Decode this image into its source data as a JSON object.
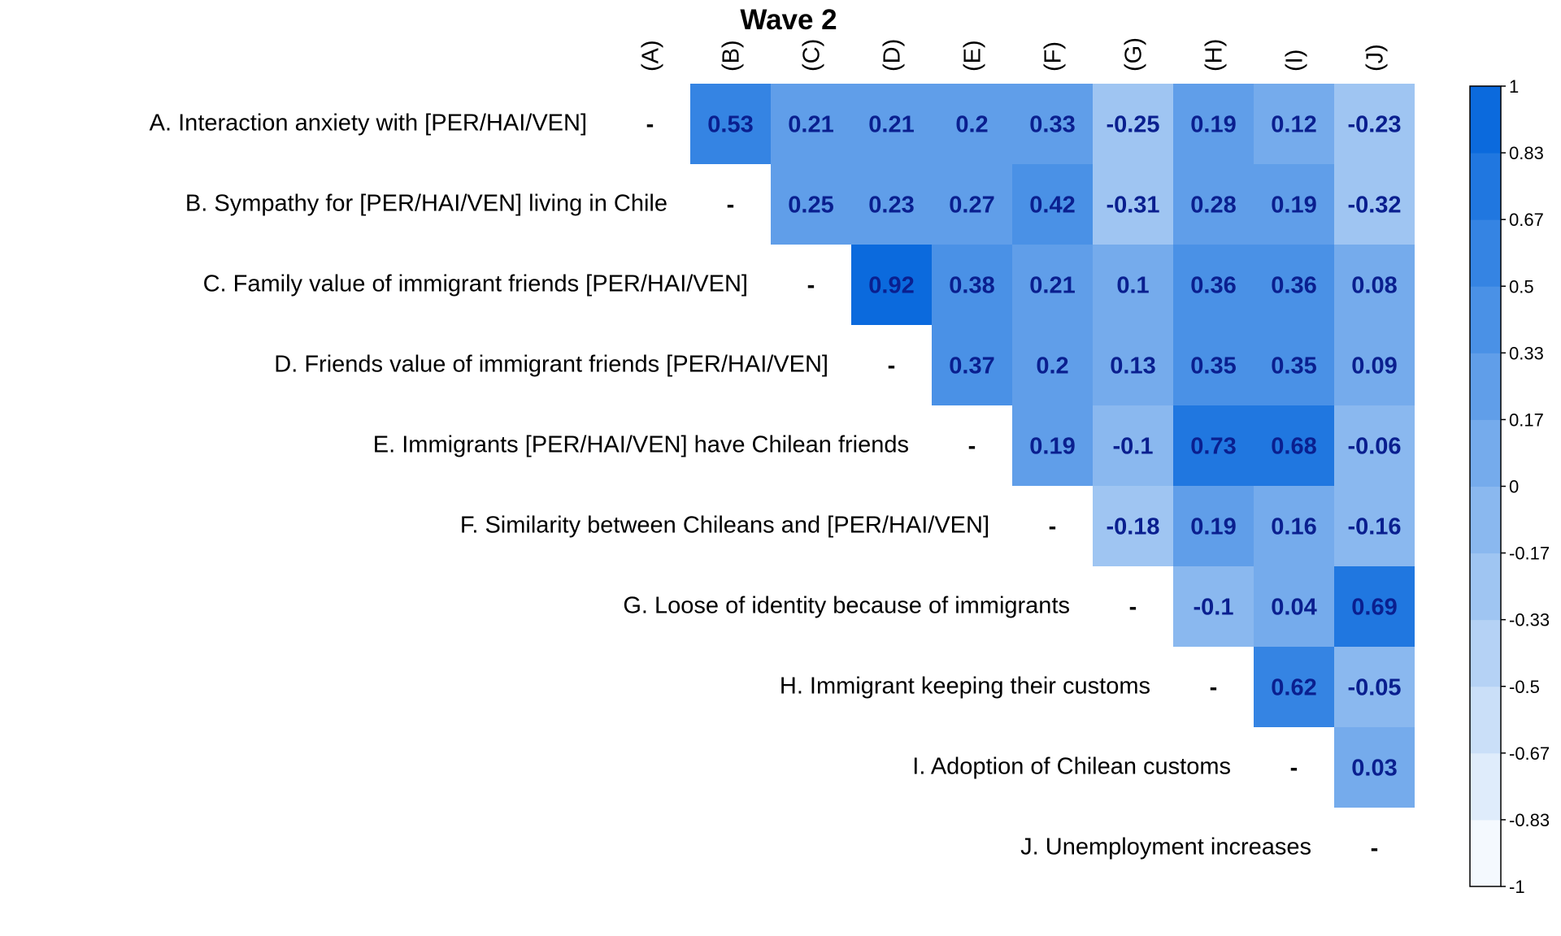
{
  "chart_data": {
    "type": "heatmap",
    "title": "Wave 2",
    "col_labels": [
      "(A)",
      "(B)",
      "(C)",
      "(D)",
      "(E)",
      "(F)",
      "(G)",
      "(H)",
      "(I)",
      "(J)"
    ],
    "row_labels": [
      "A. Interaction anxiety with [PER/HAI/VEN]",
      "B. Sympathy for [PER/HAI/VEN] living in Chile",
      "C. Family value of immigrant friends [PER/HAI/VEN]",
      "D. Friends value of immigrant friends [PER/HAI/VEN]",
      "E. Immigrants [PER/HAI/VEN] have Chilean friends",
      "F. Similarity between Chileans and [PER/HAI/VEN]",
      "G. Loose of identity because of immigrants",
      "H. Immigrant keeping their customs",
      "I. Adoption of Chilean customs",
      "J. Unemployment increases"
    ],
    "diagonal_symbol": "-",
    "values": [
      [
        "-",
        "0.53",
        "0.21",
        "0.21",
        "0.2",
        "0.33",
        "-0.25",
        "0.19",
        "0.12",
        "-0.23"
      ],
      [
        null,
        "-",
        "0.25",
        "0.23",
        "0.27",
        "0.42",
        "-0.31",
        "0.28",
        "0.19",
        "-0.32"
      ],
      [
        null,
        null,
        "-",
        "0.92",
        "0.38",
        "0.21",
        "0.1",
        "0.36",
        "0.36",
        "0.08"
      ],
      [
        null,
        null,
        null,
        "-",
        "0.37",
        "0.2",
        "0.13",
        "0.35",
        "0.35",
        "0.09"
      ],
      [
        null,
        null,
        null,
        null,
        "-",
        "0.19",
        "-0.1",
        "0.73",
        "0.68",
        "-0.06"
      ],
      [
        null,
        null,
        null,
        null,
        null,
        "-",
        "-0.18",
        "0.19",
        "0.16",
        "-0.16"
      ],
      [
        null,
        null,
        null,
        null,
        null,
        null,
        "-",
        "-0.1",
        "0.04",
        "0.69"
      ],
      [
        null,
        null,
        null,
        null,
        null,
        null,
        null,
        "-",
        "0.62",
        "-0.05"
      ],
      [
        null,
        null,
        null,
        null,
        null,
        null,
        null,
        null,
        "-",
        "0.03"
      ],
      [
        null,
        null,
        null,
        null,
        null,
        null,
        null,
        null,
        null,
        "-"
      ]
    ],
    "color_scale": {
      "range": [
        -1,
        1
      ],
      "low_color": "#ffffff",
      "high_color": "#0064dc",
      "ticks": [
        "1",
        "0.83",
        "0.67",
        "0.5",
        "0.33",
        "0.17",
        "0",
        "-0.17",
        "-0.33",
        "-0.5",
        "-0.67",
        "-0.83",
        "-1"
      ]
    },
    "legend_position": "right"
  }
}
